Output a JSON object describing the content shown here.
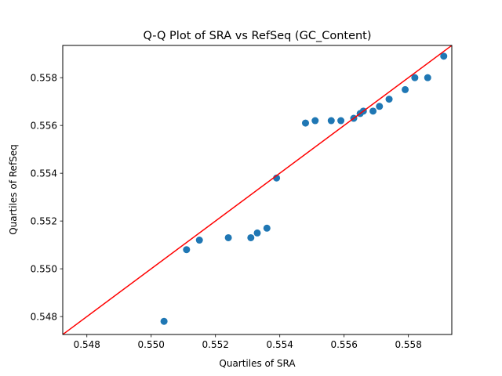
{
  "chart_data": {
    "type": "scatter",
    "title": "Q-Q Plot of SRA vs RefSeq (GC_Content)",
    "xlabel": "Quartiles of SRA",
    "ylabel": "Quartiles of RefSeq",
    "xlim": [
      0.54725,
      0.55935
    ],
    "ylim": [
      0.54725,
      0.55935
    ],
    "xticks": [
      0.548,
      0.55,
      0.552,
      0.554,
      0.556,
      0.558
    ],
    "yticks": [
      0.548,
      0.55,
      0.552,
      0.554,
      0.556,
      0.558
    ],
    "tick_labels": [
      "0.548",
      "0.550",
      "0.552",
      "0.554",
      "0.556",
      "0.558"
    ],
    "grid": false,
    "point_color": "#1f77b4",
    "reference_line": {
      "from": [
        0.54725,
        0.54725
      ],
      "to": [
        0.55935,
        0.55935
      ],
      "color": "#ff0000"
    },
    "points": [
      {
        "x": 0.5504,
        "y": 0.5478
      },
      {
        "x": 0.5511,
        "y": 0.5508
      },
      {
        "x": 0.5515,
        "y": 0.5512
      },
      {
        "x": 0.5524,
        "y": 0.5513
      },
      {
        "x": 0.5531,
        "y": 0.5513
      },
      {
        "x": 0.5533,
        "y": 0.5515
      },
      {
        "x": 0.5536,
        "y": 0.5517
      },
      {
        "x": 0.5539,
        "y": 0.5538
      },
      {
        "x": 0.5548,
        "y": 0.5561
      },
      {
        "x": 0.5551,
        "y": 0.5562
      },
      {
        "x": 0.5556,
        "y": 0.5562
      },
      {
        "x": 0.5559,
        "y": 0.5562
      },
      {
        "x": 0.5563,
        "y": 0.5563
      },
      {
        "x": 0.5565,
        "y": 0.5565
      },
      {
        "x": 0.5566,
        "y": 0.5566
      },
      {
        "x": 0.5569,
        "y": 0.5566
      },
      {
        "x": 0.5571,
        "y": 0.5568
      },
      {
        "x": 0.5574,
        "y": 0.5571
      },
      {
        "x": 0.5579,
        "y": 0.5575
      },
      {
        "x": 0.5582,
        "y": 0.558
      },
      {
        "x": 0.5586,
        "y": 0.558
      },
      {
        "x": 0.5591,
        "y": 0.5589
      }
    ]
  }
}
